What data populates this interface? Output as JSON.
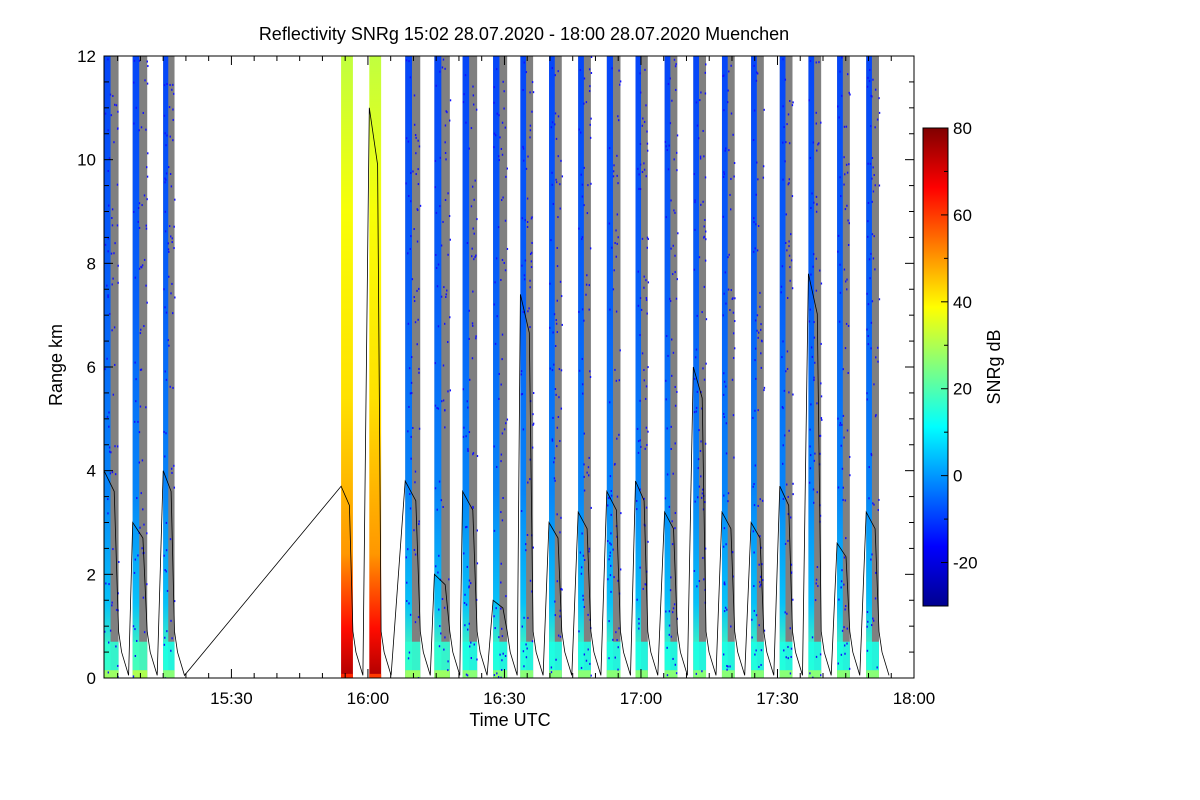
{
  "chart_data": {
    "type": "heatmap",
    "title": "Reflectivity SNRg   15:02 28.07.2020 - 18:00 28.07.2020 Muenchen",
    "xlabel": "Time UTC",
    "ylabel": "Range km",
    "colorbar_label": "SNRg dB",
    "x_start": "15:02",
    "x_end": "18:00",
    "xlim_minutes": [
      902,
      1080
    ],
    "x_ticks": [
      {
        "label": "15:30",
        "minute": 930
      },
      {
        "label": "16:00",
        "minute": 960
      },
      {
        "label": "16:30",
        "minute": 990
      },
      {
        "label": "17:00",
        "minute": 1020
      },
      {
        "label": "17:30",
        "minute": 1050
      },
      {
        "label": "18:00",
        "minute": 1080
      }
    ],
    "ylim": [
      0,
      12
    ],
    "y_ticks": [
      "0",
      "2",
      "4",
      "6",
      "8",
      "10",
      "12"
    ],
    "clim": [
      -30,
      80
    ],
    "colorbar_ticks": [
      "-20",
      "0",
      "20",
      "40",
      "60",
      "80"
    ],
    "colorscale": [
      "#00008f",
      "#0000ff",
      "#0080ff",
      "#00ffff",
      "#80ff80",
      "#ffff00",
      "#ff8000",
      "#ff0000",
      "#800000"
    ],
    "no_signal_color": "#808080",
    "scans": [
      {
        "t0": 902.0,
        "t1": 905.2,
        "kind": "volume",
        "base": 20,
        "upper": -8,
        "wall": 4.0
      },
      {
        "t0": 908.3,
        "t1": 911.5,
        "kind": "volume",
        "base": 22,
        "upper": -5,
        "wall": 3.0
      },
      {
        "t0": 915.0,
        "t1": 917.5,
        "kind": "volume",
        "base": 18,
        "upper": -6,
        "wall": 4.0
      },
      {
        "t0": 954.1,
        "t1": 956.7,
        "kind": "vertical",
        "base": 62,
        "upper": 35,
        "wall": 3.7
      },
      {
        "t0": 960.3,
        "t1": 962.9,
        "kind": "vertical",
        "base": 60,
        "upper": 38,
        "wall": 11.0
      },
      {
        "t0": 968.2,
        "t1": 971.5,
        "kind": "volume",
        "base": 20,
        "upper": -6,
        "wall": 3.8
      },
      {
        "t0": 974.6,
        "t1": 978.0,
        "kind": "volume",
        "base": 20,
        "upper": -5,
        "wall": 2.0
      },
      {
        "t0": 980.8,
        "t1": 984.0,
        "kind": "volume",
        "base": 18,
        "upper": -8,
        "wall": 3.6
      },
      {
        "t0": 987.5,
        "t1": 990.6,
        "kind": "volume",
        "base": 18,
        "upper": -8,
        "wall": 1.5
      },
      {
        "t0": 993.5,
        "t1": 996.3,
        "kind": "volume",
        "base": 18,
        "upper": -8,
        "wall": 7.4
      },
      {
        "t0": 999.8,
        "t1": 1002.6,
        "kind": "volume",
        "base": 18,
        "upper": -8,
        "wall": 3.0
      },
      {
        "t0": 1006.2,
        "t1": 1009.0,
        "kind": "volume",
        "base": 18,
        "upper": -8,
        "wall": 3.2
      },
      {
        "t0": 1012.5,
        "t1": 1015.5,
        "kind": "volume",
        "base": 18,
        "upper": -8,
        "wall": 3.6
      },
      {
        "t0": 1018.8,
        "t1": 1021.5,
        "kind": "volume",
        "base": 18,
        "upper": -8,
        "wall": 3.8
      },
      {
        "t0": 1025.2,
        "t1": 1028.0,
        "kind": "volume",
        "base": 18,
        "upper": -8,
        "wall": 3.2
      },
      {
        "t0": 1031.5,
        "t1": 1034.3,
        "kind": "volume",
        "base": 18,
        "upper": -8,
        "wall": 6.0
      },
      {
        "t0": 1037.8,
        "t1": 1040.6,
        "kind": "volume",
        "base": 18,
        "upper": -8,
        "wall": 3.2
      },
      {
        "t0": 1044.2,
        "t1": 1047.0,
        "kind": "volume",
        "base": 18,
        "upper": -8,
        "wall": 3.0
      },
      {
        "t0": 1050.5,
        "t1": 1053.3,
        "kind": "volume",
        "base": 18,
        "upper": -8,
        "wall": 3.7
      },
      {
        "t0": 1056.8,
        "t1": 1059.6,
        "kind": "volume",
        "base": 18,
        "upper": -8,
        "wall": 7.8
      },
      {
        "t0": 1063.1,
        "t1": 1065.9,
        "kind": "volume",
        "base": 18,
        "upper": -8,
        "wall": 2.6
      },
      {
        "t0": 1069.5,
        "t1": 1072.3,
        "kind": "volume",
        "base": 18,
        "upper": -8,
        "wall": 3.2
      }
    ]
  }
}
